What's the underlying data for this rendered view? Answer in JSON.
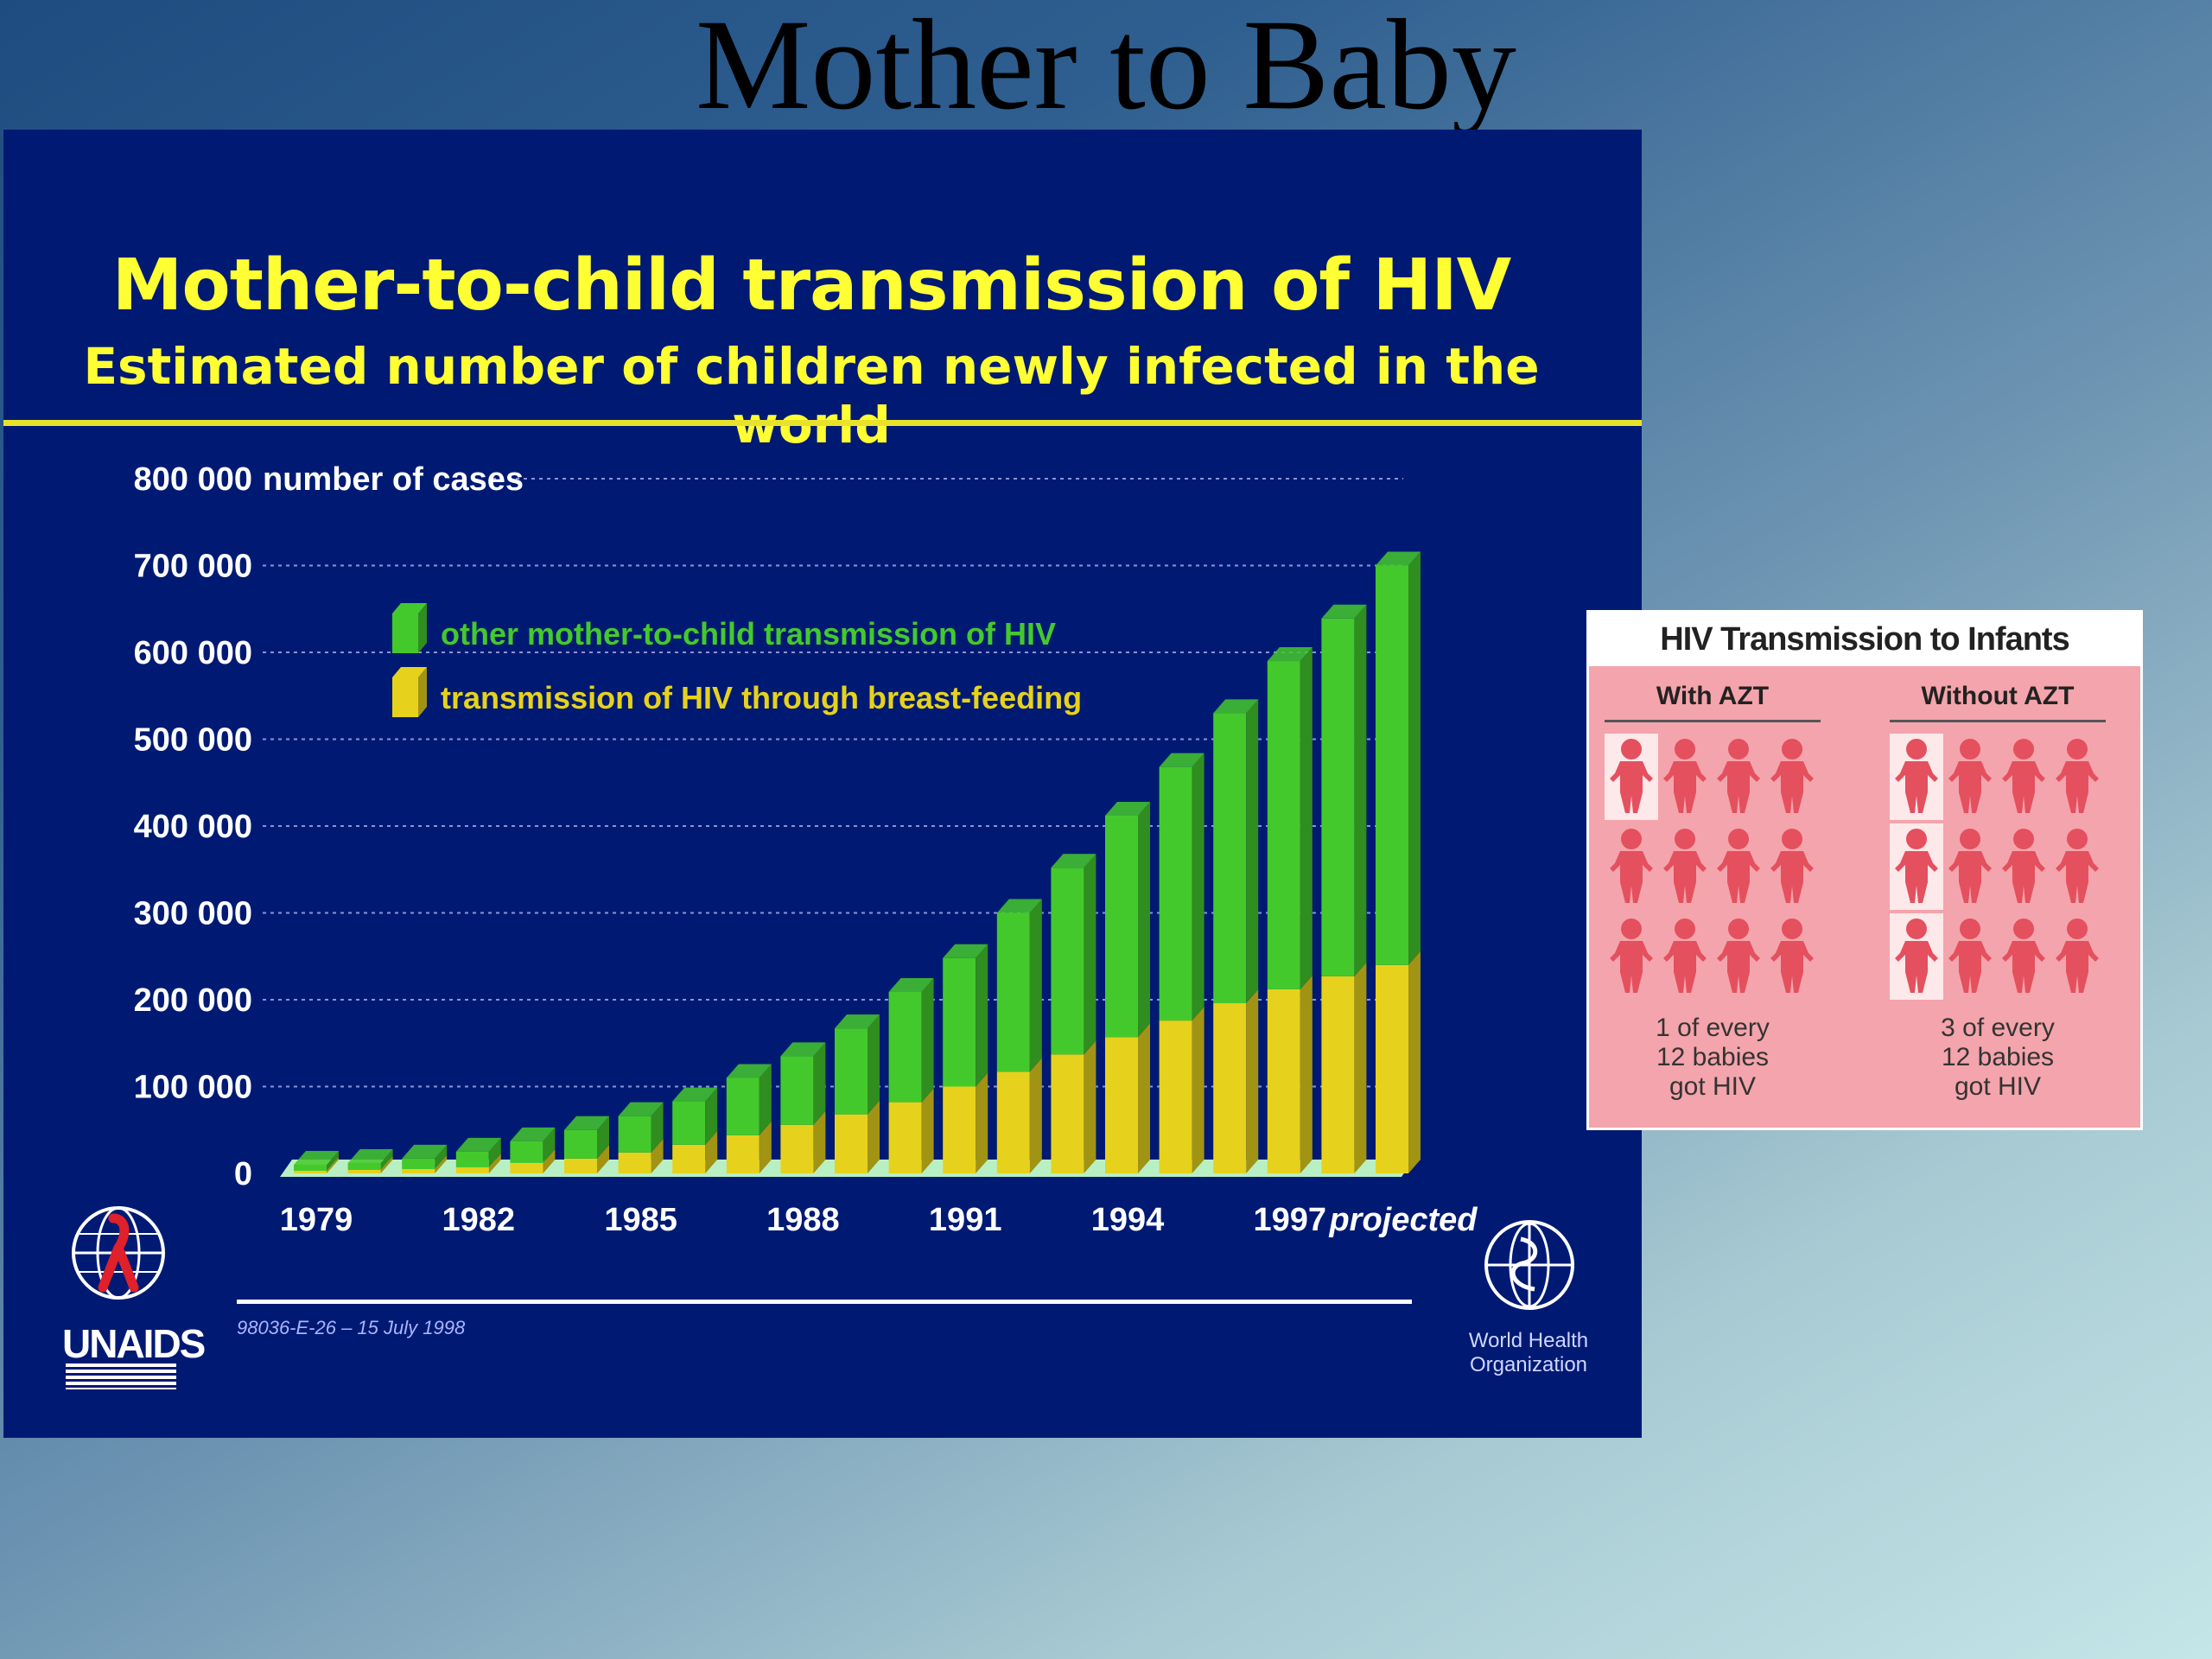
{
  "slide": {
    "title": "Mother to Baby"
  },
  "chart_data": {
    "type": "bar",
    "stacked": true,
    "title": "Mother-to-child transmission of HIV",
    "subtitle": "Estimated number of children newly infected in the world",
    "ylabel": "number of cases",
    "ylim": [
      0,
      800000
    ],
    "y_ticks": [
      "0",
      "100 000",
      "200 000",
      "300 000",
      "400 000",
      "500 000",
      "600 000",
      "700 000",
      "800 000"
    ],
    "categories": [
      "1979",
      "1980",
      "1981",
      "1982",
      "1983",
      "1984",
      "1985",
      "1986",
      "1987",
      "1988",
      "1989",
      "1990",
      "1991",
      "1992",
      "1993",
      "1994",
      "1995",
      "1996",
      "1997",
      "1998",
      "projected"
    ],
    "x_tick_labels": [
      "1979",
      "1982",
      "1985",
      "1988",
      "1991",
      "1994",
      "1997",
      "projected"
    ],
    "grid": true,
    "legend_position": "top-left",
    "series": [
      {
        "name": "transmission of HIV through breast-feeding",
        "color": "#e6d21c",
        "values": [
          3000,
          4000,
          5000,
          7000,
          12000,
          17000,
          24000,
          33000,
          44000,
          56000,
          68000,
          82000,
          100000,
          117000,
          137000,
          157000,
          176000,
          196000,
          212000,
          227000,
          240000
        ]
      },
      {
        "name": "other mother-to-child transmission of HIV",
        "color": "#44c92c",
        "values": [
          7000,
          8000,
          12000,
          18000,
          25000,
          33000,
          42000,
          50000,
          66000,
          79000,
          99000,
          127000,
          148000,
          183000,
          215000,
          255000,
          292000,
          334000,
          378000,
          412000,
          460000
        ]
      }
    ],
    "footnote": "98036-E-26 – 15 July 1998"
  },
  "logos": {
    "unaids": "UNAIDS",
    "who_line1": "World Health",
    "who_line2": "Organization"
  },
  "inset": {
    "title": "HIV Transmission to Infants",
    "with_azt": {
      "heading": "With AZT",
      "infected_count": 1,
      "total": 12,
      "caption_line1": "1 of every",
      "caption_line2": "12 babies",
      "caption_line3": "got HIV"
    },
    "without_azt": {
      "heading": "Without AZT",
      "infected_count": 3,
      "total": 12,
      "caption_line1": "3 of every",
      "caption_line2": "12 babies",
      "caption_line3": "got HIV"
    }
  }
}
